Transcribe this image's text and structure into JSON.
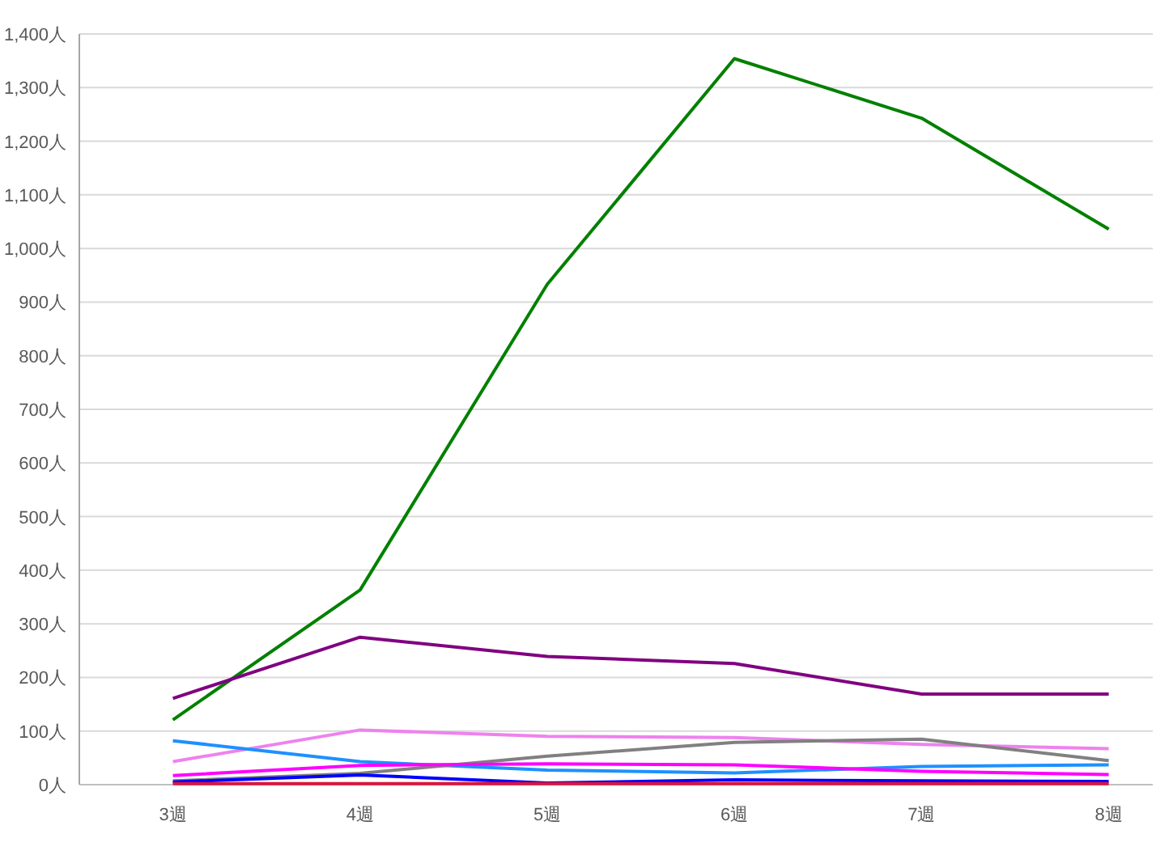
{
  "chart_data": {
    "type": "line",
    "categories": [
      "3週",
      "4週",
      "5週",
      "6週",
      "7週",
      "8週"
    ],
    "series": [
      {
        "color": "#008000",
        "values": [
          121,
          363,
          933,
          1354,
          1243,
          1036
        ]
      },
      {
        "color": "#800080",
        "values": [
          161,
          275,
          239,
          226,
          169,
          169
        ]
      },
      {
        "color": "#ee82ee",
        "values": [
          43,
          102,
          90,
          88,
          75,
          67
        ]
      },
      {
        "color": "#1e90ff",
        "values": [
          82,
          43,
          27,
          22,
          34,
          37
        ]
      },
      {
        "color": "#808080",
        "values": [
          7,
          21,
          53,
          79,
          85,
          45
        ]
      },
      {
        "color": "#ff00ff",
        "values": [
          17,
          36,
          39,
          37,
          25,
          19
        ]
      },
      {
        "color": "#0000ff",
        "values": [
          5,
          18,
          3,
          9,
          7,
          6
        ]
      },
      {
        "color": "#dc143c",
        "values": [
          2,
          2,
          2,
          2,
          2,
          2
        ]
      }
    ],
    "ylim": [
      0,
      1400
    ],
    "yticks": [
      {
        "value": 0,
        "label": "0人"
      },
      {
        "value": 100,
        "label": "100人"
      },
      {
        "value": 200,
        "label": "200人"
      },
      {
        "value": 300,
        "label": "300人"
      },
      {
        "value": 400,
        "label": "400人"
      },
      {
        "value": 500,
        "label": "500人"
      },
      {
        "value": 600,
        "label": "600人"
      },
      {
        "value": 700,
        "label": "700人"
      },
      {
        "value": 800,
        "label": "800人"
      },
      {
        "value": 900,
        "label": "900人"
      },
      {
        "value": 1000,
        "label": "1,000人"
      },
      {
        "value": 1100,
        "label": "1,100人"
      },
      {
        "value": 1200,
        "label": "1,200人"
      },
      {
        "value": 1300,
        "label": "1,300人"
      },
      {
        "value": 1400,
        "label": "1,400人"
      }
    ],
    "grid": "y"
  }
}
